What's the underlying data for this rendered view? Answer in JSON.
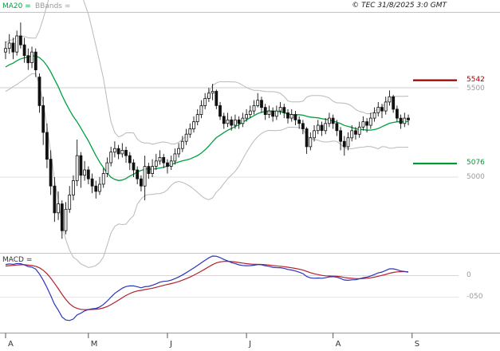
{
  "meta": {
    "copyright": "© TEC 31/8/2025 3:0 GMT"
  },
  "legend": {
    "ma20_label": "MA20 =",
    "bbands_label": "BBands =",
    "macd_label": "MACD ="
  },
  "price_labels": {
    "resistance": "5542",
    "grid_5500": "5500",
    "support": "5076",
    "grid_5000": "5000"
  },
  "macd_labels": {
    "zero": "0",
    "minus050": "-050"
  },
  "colors": {
    "ma20": "#00a040",
    "bbands": "#b9b9b9",
    "candle": "#111111",
    "macd_line": "#2b35b8",
    "macd_signal": "#b3202c",
    "resistance": "#990000",
    "support": "#009933",
    "grid": "#cfcfcf"
  },
  "chart_data": {
    "type": "candlestick",
    "title": "",
    "x_axis": {
      "tick_labels": [
        "A",
        "M",
        "J",
        "J",
        "A",
        "S"
      ],
      "tick_candle_indices": [
        0,
        22,
        43,
        64,
        87,
        108
      ]
    },
    "y_gridline_values": [
      5500,
      5000
    ],
    "levels": [
      {
        "name": "resistance",
        "value": 5542,
        "color": "#990000"
      },
      {
        "name": "support",
        "value": 5076,
        "color": "#009933"
      }
    ],
    "overlays": [
      {
        "name": "MA20",
        "period": 20
      },
      {
        "name": "BollingerBands",
        "period": 20,
        "stddev": 2
      }
    ],
    "sub_chart": {
      "type": "line",
      "name": "MACD",
      "params": {
        "fast": 12,
        "slow": 26,
        "signal": 9
      },
      "gridlines": [
        0,
        -0.5
      ]
    },
    "indicator_seed_closes": [
      5480,
      5500,
      5520,
      5510,
      5540,
      5560,
      5550,
      5580,
      5600,
      5590,
      5620,
      5640,
      5630,
      5660,
      5650,
      5680,
      5670,
      5700,
      5690,
      5710
    ],
    "ohlc": [
      [
        5700,
        5760,
        5660,
        5720
      ],
      [
        5720,
        5800,
        5690,
        5750
      ],
      [
        5750,
        5780,
        5660,
        5700
      ],
      [
        5700,
        5820,
        5680,
        5790
      ],
      [
        5790,
        5865,
        5720,
        5740
      ],
      [
        5740,
        5780,
        5640,
        5680
      ],
      [
        5680,
        5720,
        5600,
        5640
      ],
      [
        5640,
        5730,
        5610,
        5700
      ],
      [
        5700,
        5720,
        5560,
        5600
      ],
      [
        5560,
        5580,
        5360,
        5400
      ],
      [
        5400,
        5450,
        5180,
        5250
      ],
      [
        5250,
        5300,
        5050,
        5100
      ],
      [
        5100,
        5150,
        4900,
        4950
      ],
      [
        4950,
        5000,
        4750,
        4800
      ],
      [
        4800,
        4920,
        4760,
        4850
      ],
      [
        4850,
        4870,
        4655,
        4700
      ],
      [
        4700,
        4860,
        4680,
        4820
      ],
      [
        4820,
        4950,
        4800,
        4900
      ],
      [
        4900,
        5010,
        4870,
        4980
      ],
      [
        4980,
        5210,
        4950,
        5120
      ],
      [
        5120,
        5140,
        4940,
        5010
      ],
      [
        5010,
        5090,
        4980,
        5040
      ],
      [
        5040,
        5060,
        4960,
        4990
      ],
      [
        4990,
        5020,
        4910,
        4950
      ],
      [
        4950,
        4980,
        4880,
        4920
      ],
      [
        4920,
        5000,
        4900,
        4960
      ],
      [
        4960,
        5050,
        4940,
        5020
      ],
      [
        5020,
        5110,
        5000,
        5080
      ],
      [
        5080,
        5170,
        5060,
        5140
      ],
      [
        5140,
        5200,
        5110,
        5160
      ],
      [
        5160,
        5180,
        5100,
        5130
      ],
      [
        5130,
        5190,
        5110,
        5150
      ],
      [
        5150,
        5170,
        5080,
        5120
      ],
      [
        5120,
        5140,
        5040,
        5080
      ],
      [
        5080,
        5100,
        5000,
        5040
      ],
      [
        5040,
        5060,
        4960,
        4990
      ],
      [
        4990,
        5010,
        4920,
        4950
      ],
      [
        4950,
        5120,
        4870,
        5060
      ],
      [
        5060,
        5080,
        4990,
        5020
      ],
      [
        5020,
        5100,
        5000,
        5060
      ],
      [
        5060,
        5130,
        5040,
        5090
      ],
      [
        5090,
        5150,
        5070,
        5110
      ],
      [
        5110,
        5130,
        5050,
        5080
      ],
      [
        5080,
        5100,
        5020,
        5060
      ],
      [
        5060,
        5120,
        5040,
        5090
      ],
      [
        5090,
        5160,
        5070,
        5130
      ],
      [
        5130,
        5190,
        5110,
        5160
      ],
      [
        5160,
        5230,
        5140,
        5200
      ],
      [
        5200,
        5270,
        5180,
        5240
      ],
      [
        5240,
        5300,
        5220,
        5270
      ],
      [
        5270,
        5340,
        5250,
        5310
      ],
      [
        5310,
        5380,
        5290,
        5350
      ],
      [
        5350,
        5430,
        5330,
        5400
      ],
      [
        5400,
        5470,
        5380,
        5440
      ],
      [
        5440,
        5500,
        5420,
        5470
      ],
      [
        5470,
        5522,
        5430,
        5480
      ],
      [
        5480,
        5490,
        5380,
        5400
      ],
      [
        5400,
        5420,
        5320,
        5340
      ],
      [
        5340,
        5360,
        5270,
        5300
      ],
      [
        5300,
        5360,
        5280,
        5320
      ],
      [
        5320,
        5340,
        5260,
        5290
      ],
      [
        5290,
        5350,
        5270,
        5320
      ],
      [
        5320,
        5340,
        5270,
        5300
      ],
      [
        5300,
        5360,
        5280,
        5330
      ],
      [
        5330,
        5380,
        5310,
        5350
      ],
      [
        5350,
        5400,
        5330,
        5370
      ],
      [
        5370,
        5430,
        5350,
        5400
      ],
      [
        5400,
        5470,
        5390,
        5430
      ],
      [
        5430,
        5450,
        5360,
        5390
      ],
      [
        5390,
        5410,
        5320,
        5350
      ],
      [
        5350,
        5400,
        5330,
        5370
      ],
      [
        5370,
        5390,
        5310,
        5340
      ],
      [
        5340,
        5400,
        5320,
        5370
      ],
      [
        5370,
        5420,
        5350,
        5390
      ],
      [
        5390,
        5410,
        5330,
        5360
      ],
      [
        5360,
        5380,
        5300,
        5330
      ],
      [
        5330,
        5380,
        5310,
        5350
      ],
      [
        5350,
        5370,
        5290,
        5320
      ],
      [
        5320,
        5340,
        5270,
        5300
      ],
      [
        5300,
        5320,
        5240,
        5270
      ],
      [
        5270,
        5280,
        5130,
        5170
      ],
      [
        5170,
        5250,
        5150,
        5220
      ],
      [
        5220,
        5290,
        5200,
        5260
      ],
      [
        5260,
        5320,
        5240,
        5290
      ],
      [
        5290,
        5310,
        5230,
        5260
      ],
      [
        5260,
        5330,
        5240,
        5300
      ],
      [
        5300,
        5360,
        5280,
        5330
      ],
      [
        5330,
        5350,
        5270,
        5300
      ],
      [
        5300,
        5320,
        5230,
        5260
      ],
      [
        5260,
        5280,
        5150,
        5200
      ],
      [
        5200,
        5230,
        5120,
        5170
      ],
      [
        5170,
        5250,
        5150,
        5220
      ],
      [
        5220,
        5290,
        5200,
        5260
      ],
      [
        5260,
        5280,
        5210,
        5240
      ],
      [
        5240,
        5310,
        5220,
        5280
      ],
      [
        5280,
        5340,
        5260,
        5310
      ],
      [
        5310,
        5330,
        5250,
        5290
      ],
      [
        5290,
        5360,
        5270,
        5330
      ],
      [
        5330,
        5390,
        5310,
        5360
      ],
      [
        5360,
        5420,
        5340,
        5390
      ],
      [
        5390,
        5410,
        5330,
        5370
      ],
      [
        5370,
        5450,
        5350,
        5420
      ],
      [
        5420,
        5485,
        5400,
        5450
      ],
      [
        5450,
        5460,
        5360,
        5380
      ],
      [
        5380,
        5400,
        5310,
        5330
      ],
      [
        5330,
        5350,
        5270,
        5300
      ],
      [
        5300,
        5360,
        5280,
        5330
      ],
      [
        5330,
        5350,
        5290,
        5320
      ]
    ]
  }
}
